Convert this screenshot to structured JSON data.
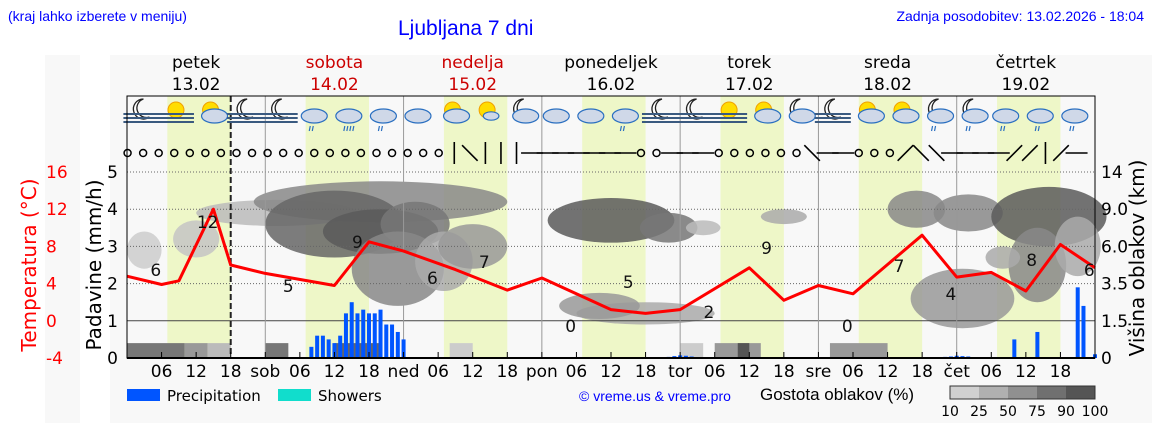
{
  "header": {
    "region_hint": "(kraj lahko izberete v meniju)",
    "title": "Ljubljana 7 dni",
    "last_update": "Zadnja posodobitev: 13.02.2026 - 18:04"
  },
  "days": [
    {
      "name": "petek",
      "date": "13.02",
      "weekend": false
    },
    {
      "name": "sobota",
      "date": "14.02",
      "weekend": true
    },
    {
      "name": "nedelja",
      "date": "15.02",
      "weekend": true
    },
    {
      "name": "ponedeljek",
      "date": "16.02",
      "weekend": false
    },
    {
      "name": "torek",
      "date": "17.02",
      "weekend": false
    },
    {
      "name": "sreda",
      "date": "18.02",
      "weekend": false
    },
    {
      "name": "četrtek",
      "date": "19.02",
      "weekend": false
    }
  ],
  "colors": {
    "temperature": "#ff0000",
    "precipitation": "#0055ff",
    "showers": "#11ddcc",
    "daylight_band": "#eef7c8",
    "weekend_label": "#cc0000",
    "link": "#0000ff"
  },
  "legend": {
    "precipitation": "Precipitation",
    "showers": "Showers",
    "credit": "© vreme.us & vreme.pro",
    "density_label": "Gostota oblakov (%)",
    "density_ticks": [
      "10",
      "25",
      "50",
      "75",
      "90",
      "100"
    ],
    "density_colors": [
      "#d0d0d0",
      "#b0b0b0",
      "#909090",
      "#707070",
      "#555555"
    ]
  },
  "chart_data": {
    "type": "line",
    "title": "Ljubljana 7 dni",
    "xlabel": "",
    "x_ticks": [
      "06",
      "12",
      "18",
      "sob",
      "06",
      "12",
      "18",
      "ned",
      "06",
      "12",
      "18",
      "pon",
      "06",
      "12",
      "18",
      "tor",
      "06",
      "12",
      "18",
      "sre",
      "06",
      "12",
      "18",
      "čet",
      "06",
      "12",
      "18"
    ],
    "y_axes": {
      "left_outer": {
        "label": "Temperatura (°C)",
        "ticks": [
          -4,
          0,
          4,
          8,
          12,
          16
        ],
        "range": [
          -4,
          16
        ]
      },
      "left_inner": {
        "label": "Padavine (mm/h)",
        "ticks": [
          0,
          1,
          2,
          3,
          4,
          5
        ],
        "range": [
          0,
          5
        ]
      },
      "right": {
        "label": "Višina oblakov (km)",
        "ticks": [
          "0",
          "1.5",
          "3.5",
          "6.0",
          "9.0",
          "14"
        ]
      }
    },
    "now_marker_hour": 18,
    "series": [
      {
        "name": "Temperature",
        "type": "line",
        "unit": "°C",
        "hours": [
          0,
          6,
          9,
          15,
          18,
          24,
          36,
          42,
          48,
          57,
          66,
          72,
          84,
          90,
          96,
          108,
          114,
          120,
          126,
          138,
          144,
          150,
          156,
          162,
          168
        ],
        "values": [
          4.8,
          3.9,
          4.3,
          12.0,
          6.0,
          5.1,
          3.8,
          8.5,
          7.5,
          5.5,
          3.3,
          4.6,
          1.2,
          0.8,
          1.2,
          5.7,
          2.2,
          3.8,
          2.9,
          9.2,
          4.7,
          5.2,
          3.2,
          8.2,
          5.7
        ],
        "labels": [
          {
            "hour": 5,
            "value": "6"
          },
          {
            "hour": 14,
            "value": "12"
          },
          {
            "hour": 28,
            "value": "5"
          },
          {
            "hour": 40,
            "value": "9"
          },
          {
            "hour": 53,
            "value": "6"
          },
          {
            "hour": 62,
            "value": "7"
          },
          {
            "hour": 77,
            "value": "0"
          },
          {
            "hour": 87,
            "value": "5"
          },
          {
            "hour": 101,
            "value": "2"
          },
          {
            "hour": 111,
            "value": "9"
          },
          {
            "hour": 125,
            "value": "0"
          },
          {
            "hour": 134,
            "value": "7"
          },
          {
            "hour": 143,
            "value": "4"
          },
          {
            "hour": 157,
            "value": "8"
          },
          {
            "hour": 167,
            "value": "6"
          }
        ]
      },
      {
        "name": "Precipitation",
        "type": "bar",
        "unit": "mm/h",
        "hours": [
          32,
          33,
          34,
          35,
          36,
          37,
          38,
          39,
          40,
          41,
          42,
          43,
          44,
          45,
          46,
          47,
          48,
          94,
          95,
          96,
          97,
          98,
          142,
          143,
          144,
          145,
          146,
          154,
          158,
          165,
          166,
          168
        ],
        "values": [
          0.3,
          0.6,
          0.6,
          0.5,
          0.4,
          0.6,
          1.2,
          1.5,
          1.2,
          1.3,
          1.2,
          1.2,
          1.3,
          0.9,
          0.9,
          0.7,
          0.5,
          0.03,
          0.05,
          0.07,
          0.06,
          0.04,
          0.03,
          0.04,
          0.06,
          0.05,
          0.04,
          0.5,
          0.7,
          1.9,
          1.4,
          0.1
        ]
      }
    ]
  },
  "symbols": {
    "weather_icons": [
      "moon-fog",
      "sun-fog",
      "sun-cloud",
      "moon-fog",
      "moon-fog",
      "cloud-rain",
      "cloud-rain-heavy",
      "cloud-rain",
      "cloud",
      "sun-cloud",
      "sun-cloud-small",
      "moon-cloud",
      "cloud",
      "cloud",
      "cloud-rain",
      "moon-fog",
      "moon-fog",
      "sun-fog",
      "sun-cloud",
      "moon-cloud",
      "moon-fog",
      "sun-cloud",
      "sun-cloud",
      "moon-cloud-rain",
      "moon-cloud-rain",
      "cloud-rain",
      "cloud-rain",
      "cloud-rain"
    ],
    "wind": [
      "calm",
      "calm",
      "calm",
      "calm",
      "calm",
      "calm",
      "calm",
      "calm",
      "calm",
      "calm",
      "calm",
      "calm",
      "calm",
      "calm",
      "calm",
      "calm",
      "calm",
      "calm",
      "calm",
      "calm",
      "calm",
      "N",
      "NW",
      "S",
      "S",
      "S",
      "E",
      "W",
      "W",
      "E",
      "E",
      "W",
      "W",
      "calm",
      "calm",
      "W",
      "W",
      "E",
      "calm",
      "calm",
      "calm",
      "calm",
      "calm",
      "calm",
      "NW",
      "W",
      "W",
      "calm",
      "calm",
      "calm",
      "SW",
      "NW",
      "NW",
      "E",
      "E",
      "E",
      "E",
      "SW",
      "SW",
      "S",
      "SW",
      "E"
    ]
  }
}
